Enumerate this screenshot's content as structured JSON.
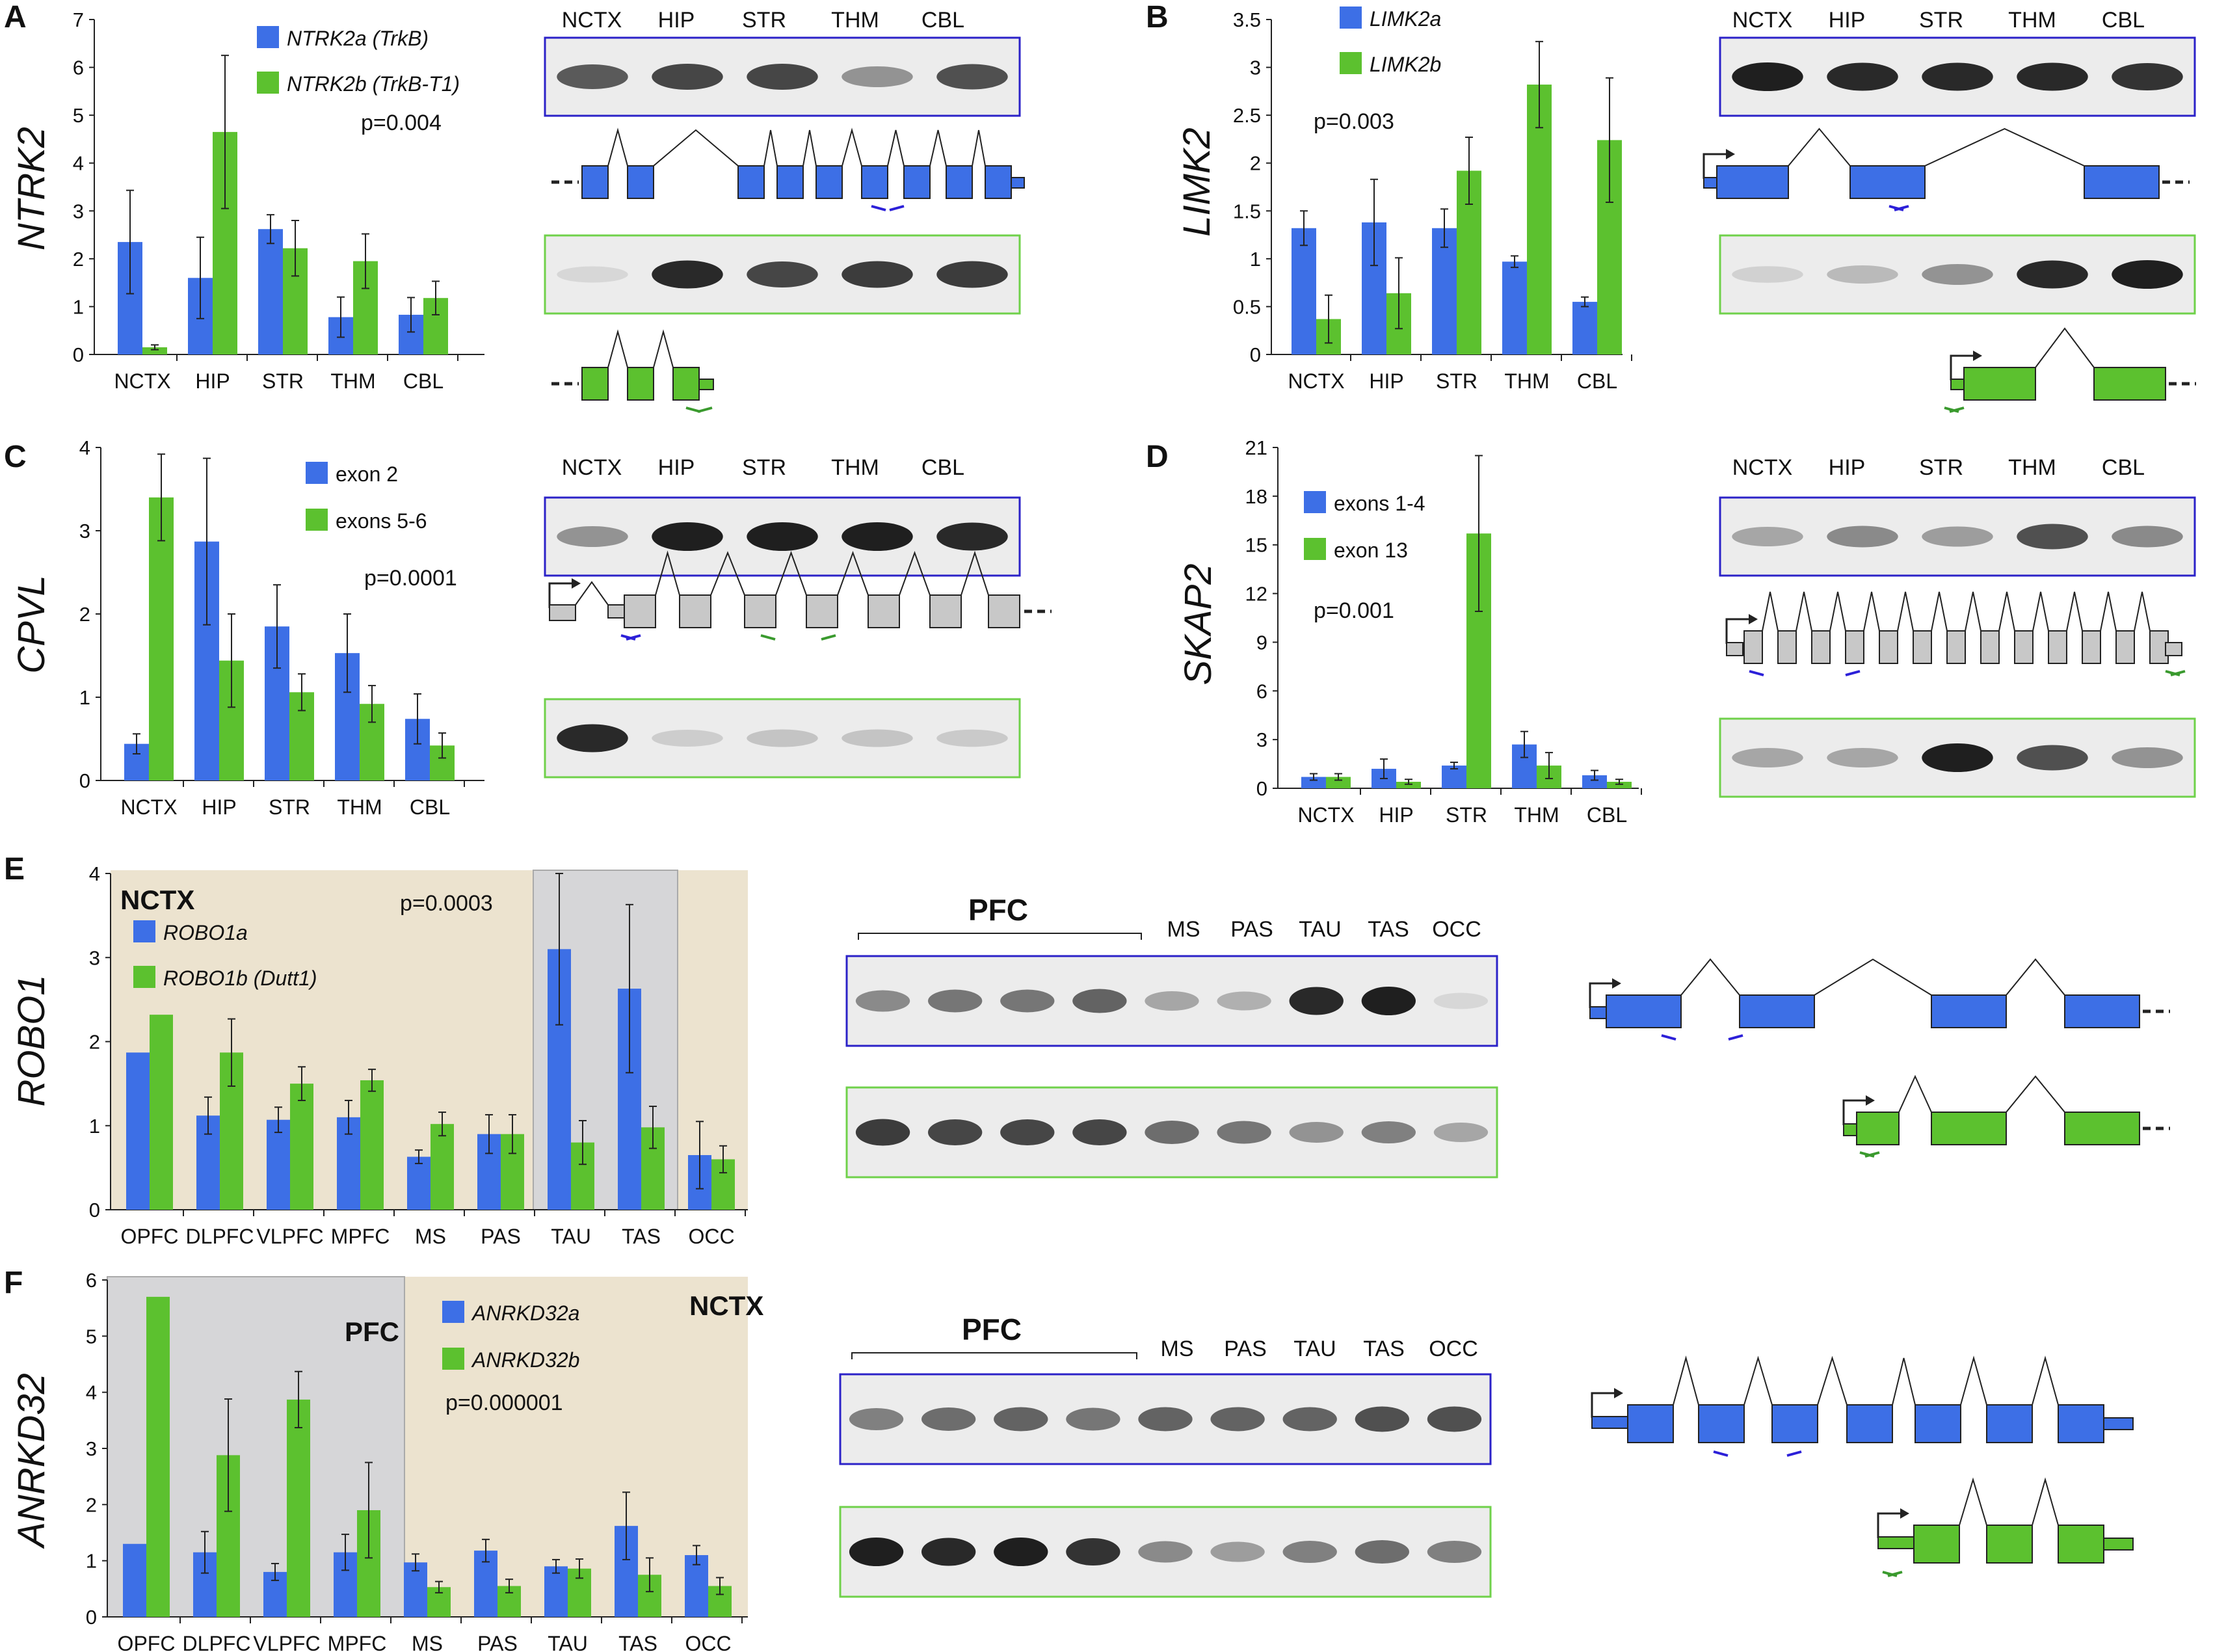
{
  "colors": {
    "blue": "#3d6fe6",
    "green": "#5cc12f",
    "grey": "#c8c8c8",
    "tan": "#ece3cf",
    "shade": "#d6d6d8",
    "boxBlue": "#2b22c8",
    "boxGreen": "#6fd14a",
    "primerBlue": "#2c20d8",
    "primerGreen": "#3a9a2e"
  },
  "panels": [
    {
      "letter": "A",
      "gene": "NTRK2",
      "pvalue": "p=0.004",
      "legend": [
        "NTRK2a (TrkB)",
        "NTRK2b (TrkB-T1)"
      ],
      "legend_italic": true,
      "chart_data": {
        "type": "bar",
        "categories": [
          "NCTX",
          "HIP",
          "STR",
          "THM",
          "CBL"
        ],
        "ylim": [
          0,
          7
        ],
        "ticks": [
          "0",
          "1",
          "2",
          "3",
          "4",
          "5",
          "6",
          "7"
        ],
        "series": [
          {
            "name": "NTRK2a (TrkB)",
            "values": [
              2.35,
              1.6,
              2.62,
              0.78,
              0.83
            ],
            "err": [
              1.08,
              0.85,
              0.3,
              0.42,
              0.36
            ]
          },
          {
            "name": "NTRK2b (TrkB-T1)",
            "values": [
              0.15,
              4.65,
              2.22,
              1.95,
              1.18
            ],
            "err": [
              0.05,
              1.6,
              0.58,
              0.57,
              0.35
            ]
          }
        ]
      },
      "gel_labels": [
        "NCTX",
        "HIP",
        "STR",
        "THM",
        "CBL"
      ],
      "gel_blue": [
        0.7,
        0.8,
        0.8,
        0.4,
        0.75
      ],
      "gel_green": [
        0.05,
        0.95,
        0.8,
        0.85,
        0.85
      ]
    },
    {
      "letter": "B",
      "gene": "LIMK2",
      "pvalue": "p=0.003",
      "legend": [
        "LIMK2a",
        "LIMK2b"
      ],
      "legend_italic": true,
      "chart_data": {
        "type": "bar",
        "categories": [
          "NCTX",
          "HIP",
          "STR",
          "THM",
          "CBL"
        ],
        "ylim": [
          0,
          3.5
        ],
        "ticks": [
          "0",
          "0.5",
          "1",
          "1.5",
          "2",
          "2.5",
          "3",
          "3.5"
        ],
        "series": [
          {
            "name": "LIMK2a",
            "values": [
              1.32,
              1.38,
              1.32,
              0.97,
              0.55
            ],
            "err": [
              0.18,
              0.45,
              0.2,
              0.06,
              0.05
            ]
          },
          {
            "name": "LIMK2b",
            "values": [
              0.37,
              0.64,
              1.92,
              2.82,
              2.24
            ],
            "err": [
              0.25,
              0.37,
              0.35,
              0.45,
              0.65
            ]
          }
        ]
      },
      "gel_labels": [
        "NCTX",
        "HIP",
        "STR",
        "THM",
        "CBL"
      ],
      "gel_blue": [
        1,
        0.95,
        0.95,
        0.95,
        0.9
      ],
      "gel_green": [
        0.08,
        0.2,
        0.4,
        0.95,
        1
      ]
    },
    {
      "letter": "C",
      "gene": "CPVL",
      "pvalue": "p=0.0001",
      "legend": [
        "exon 2",
        "exons 5-6"
      ],
      "legend_italic": false,
      "chart_data": {
        "type": "bar",
        "categories": [
          "NCTX",
          "HIP",
          "STR",
          "THM",
          "CBL"
        ],
        "ylim": [
          0,
          4
        ],
        "ticks": [
          "0",
          "1",
          "2",
          "3",
          "4"
        ],
        "series": [
          {
            "name": "exon 2",
            "values": [
              0.44,
              2.87,
              1.85,
              1.53,
              0.74
            ],
            "err": [
              0.12,
              1.0,
              0.5,
              0.47,
              0.3
            ]
          },
          {
            "name": "exons 5-6",
            "values": [
              3.4,
              1.44,
              1.06,
              0.92,
              0.42
            ],
            "err": [
              0.52,
              0.56,
              0.22,
              0.22,
              0.15
            ]
          }
        ]
      },
      "gel_labels": [
        "NCTX",
        "HIP",
        "STR",
        "THM",
        "CBL"
      ],
      "gel_blue": [
        0.4,
        1,
        1,
        1,
        0.95
      ],
      "gel_green": [
        0.95,
        0.1,
        0.15,
        0.15,
        0.12
      ]
    },
    {
      "letter": "D",
      "gene": "SKAP2",
      "pvalue": "p=0.001",
      "legend": [
        "exons 1-4",
        "exon 13"
      ],
      "legend_italic": false,
      "chart_data": {
        "type": "bar",
        "categories": [
          "NCTX",
          "HIP",
          "STR",
          "THM",
          "CBL"
        ],
        "ylim": [
          0,
          21
        ],
        "ticks": [
          "0",
          "3",
          "6",
          "9",
          "12",
          "15",
          "18",
          "21"
        ],
        "series": [
          {
            "name": "exons 1-4",
            "values": [
              0.7,
              1.2,
              1.4,
              2.7,
              0.8
            ],
            "err": [
              0.2,
              0.6,
              0.2,
              0.8,
              0.3
            ]
          },
          {
            "name": "exon 13",
            "values": [
              0.7,
              0.4,
              15.7,
              1.4,
              0.4
            ],
            "err": [
              0.2,
              0.15,
              4.8,
              0.8,
              0.15
            ]
          }
        ]
      },
      "gel_labels": [
        "NCTX",
        "HIP",
        "STR",
        "THM",
        "CBL"
      ],
      "gel_blue": [
        0.3,
        0.45,
        0.35,
        0.75,
        0.45
      ],
      "gel_green": [
        0.3,
        0.3,
        1,
        0.75,
        0.4
      ]
    },
    {
      "letter": "E",
      "gene": "ROBO1",
      "pvalue": "p=0.0003",
      "region": "NCTX",
      "legend": [
        "ROBO1a",
        "ROBO1b (Dutt1)"
      ],
      "legend_italic": true,
      "chart_data": {
        "type": "bar",
        "categories": [
          "OPFC",
          "DLPFC",
          "VLPFC",
          "MPFC",
          "MS",
          "PAS",
          "TAU",
          "TAS",
          "OCC"
        ],
        "ylim": [
          0,
          4
        ],
        "ticks": [
          "0",
          "1",
          "2",
          "3",
          "4"
        ],
        "series": [
          {
            "name": "ROBO1a",
            "values": [
              1.87,
              1.12,
              1.07,
              1.1,
              0.63,
              0.9,
              3.1,
              2.63,
              0.65
            ],
            "err": [
              0,
              0.22,
              0.15,
              0.2,
              0.08,
              0.23,
              0.9,
              1.0,
              0.4
            ]
          },
          {
            "name": "ROBO1b (Dutt1)",
            "values": [
              2.32,
              1.87,
              1.5,
              1.54,
              1.02,
              0.9,
              0.8,
              0.98,
              0.6
            ],
            "err": [
              0,
              0.4,
              0.2,
              0.13,
              0.14,
              0.23,
              0.26,
              0.25,
              0.16
            ]
          }
        ]
      },
      "gel_header": "PFC",
      "gel_labels": [
        "MS",
        "PAS",
        "TAU",
        "TAS",
        "OCC"
      ],
      "gel_blue": [
        0.45,
        0.55,
        0.55,
        0.65,
        0.3,
        0.25,
        0.95,
        1,
        0.05
      ],
      "gel_green": [
        0.85,
        0.8,
        0.8,
        0.8,
        0.6,
        0.55,
        0.4,
        0.5,
        0.3
      ]
    },
    {
      "letter": "F",
      "gene": "ANRKD32",
      "pvalue": "p=0.000001",
      "region": "NCTX",
      "region2": "PFC",
      "legend": [
        "ANRKD32a",
        "ANRKD32b"
      ],
      "legend_italic": true,
      "chart_data": {
        "type": "bar",
        "categories": [
          "OPFC",
          "DLPFC",
          "VLPFC",
          "MPFC",
          "MS",
          "PAS",
          "TAU",
          "TAS",
          "OCC"
        ],
        "ylim": [
          0,
          6
        ],
        "ticks": [
          "0",
          "1",
          "2",
          "3",
          "4",
          "5",
          "6"
        ],
        "series": [
          {
            "name": "ANRKD32a",
            "values": [
              1.3,
              1.15,
              0.8,
              1.15,
              0.97,
              1.18,
              0.9,
              1.62,
              1.1
            ],
            "err": [
              0,
              0.37,
              0.15,
              0.32,
              0.15,
              0.2,
              0.12,
              0.6,
              0.17
            ]
          },
          {
            "name": "ANRKD32b",
            "values": [
              5.7,
              2.88,
              3.87,
              1.9,
              0.53,
              0.55,
              0.86,
              0.75,
              0.55
            ],
            "err": [
              0,
              1.0,
              0.5,
              0.85,
              0.1,
              0.12,
              0.17,
              0.3,
              0.15
            ]
          }
        ]
      },
      "gel_header": "PFC",
      "gel_labels": [
        "MS",
        "PAS",
        "TAU",
        "TAS",
        "OCC"
      ],
      "gel_blue": [
        0.5,
        0.6,
        0.65,
        0.55,
        0.65,
        0.65,
        0.65,
        0.75,
        0.75
      ],
      "gel_green": [
        1,
        0.95,
        1,
        0.9,
        0.45,
        0.35,
        0.5,
        0.6,
        0.5
      ]
    }
  ]
}
